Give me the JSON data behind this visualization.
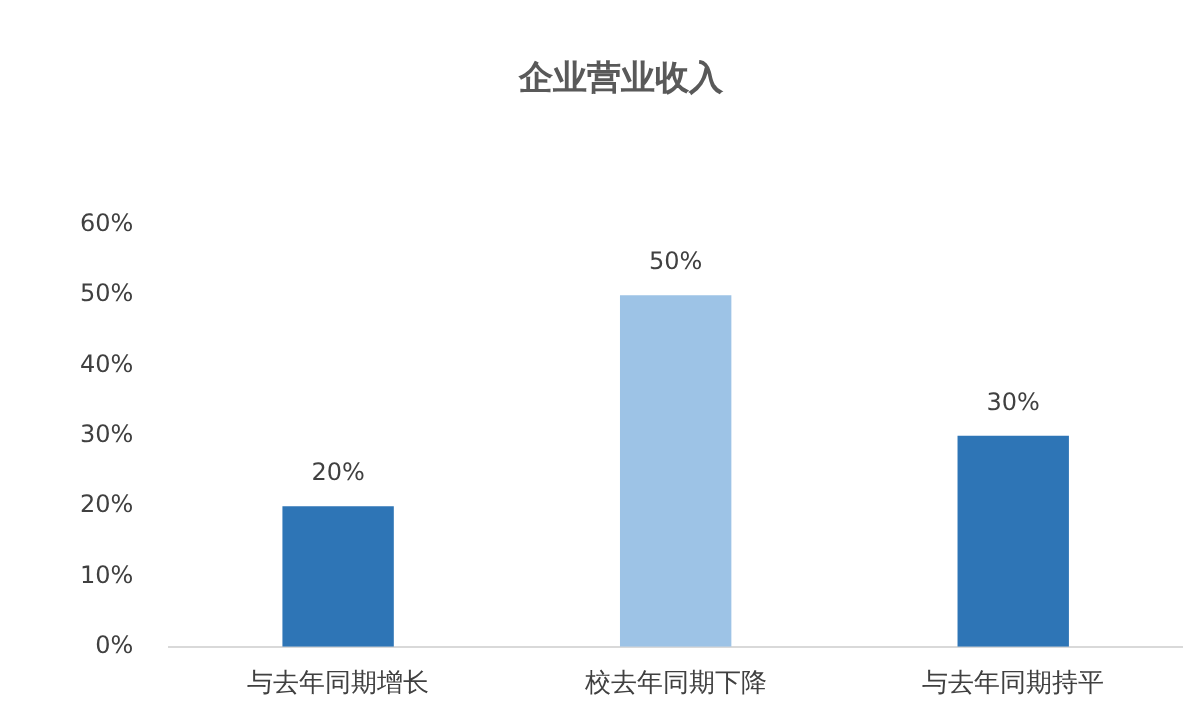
{
  "chart_data": {
    "type": "bar",
    "title": "企业营业收入",
    "categories": [
      "与去年同期增长",
      "校去年同期下降",
      "与去年同期持平"
    ],
    "values": [
      20,
      50,
      30
    ],
    "colors": [
      "#2e75b6",
      "#9dc3e6",
      "#2e75b6"
    ],
    "value_labels": [
      "20%",
      "50%",
      "30%"
    ],
    "ylim": [
      0,
      60
    ],
    "yticks": [
      {
        "value": 0,
        "label": "0%"
      },
      {
        "value": 10,
        "label": "10%"
      },
      {
        "value": 20,
        "label": "20%"
      },
      {
        "value": 30,
        "label": "30%"
      },
      {
        "value": 40,
        "label": "40%"
      },
      {
        "value": 50,
        "label": "50%"
      },
      {
        "value": 60,
        "label": "60%"
      }
    ],
    "grid": false,
    "legend": false
  }
}
